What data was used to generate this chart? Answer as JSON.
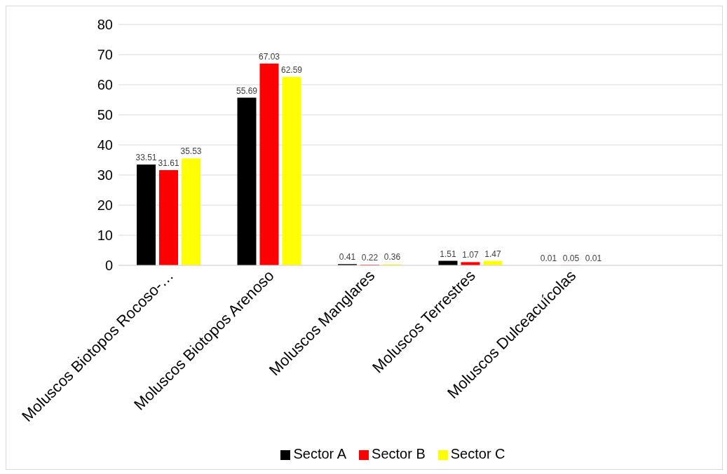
{
  "chart_data": {
    "type": "bar",
    "categories": [
      "Moluscos Biotopos Rocoso-…",
      "Moluscos Biotopos Arenoso",
      "Moluscos Manglares",
      "Moluscos Terrestres",
      "Moluscos Dulceacuícolas",
      null
    ],
    "series": [
      {
        "name": "Sector A",
        "color": "#000000",
        "values": [
          33.51,
          55.69,
          0.41,
          1.51,
          0.01,
          null
        ]
      },
      {
        "name": "Sector B",
        "color": "#ff0000",
        "values": [
          31.61,
          67.03,
          0.22,
          1.07,
          0.05,
          null
        ]
      },
      {
        "name": "Sector C",
        "color": "#ffff00",
        "values": [
          35.53,
          62.59,
          0.36,
          1.47,
          0.01,
          null
        ]
      }
    ],
    "ylim": [
      0,
      80
    ],
    "yticks": [
      0,
      10,
      20,
      30,
      40,
      50,
      60,
      70,
      80
    ],
    "grid": "y",
    "legend": "bottom",
    "data_labels": true
  }
}
